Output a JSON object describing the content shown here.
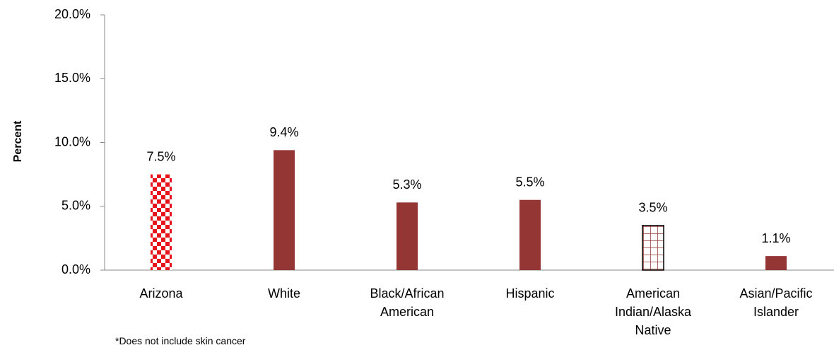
{
  "chart_data": {
    "type": "bar",
    "y_axis_label": "Percent",
    "categories": [
      "Arizona",
      "White",
      "Black/African American",
      "Hispanic",
      "American Indian/Alaska Native",
      "Asian/Pacific Islander"
    ],
    "values": [
      7.5,
      9.4,
      5.3,
      5.5,
      3.5,
      1.1
    ],
    "value_labels": [
      "7.5%",
      "9.4%",
      "5.3%",
      "5.5%",
      "3.5%",
      "1.1%"
    ],
    "colors": [
      "#e8141b",
      "#943634",
      "#943634",
      "#943634",
      "#943634",
      "#943634"
    ],
    "patterns": [
      "checkerboard",
      "solid",
      "solid",
      "solid",
      "grid",
      "solid"
    ],
    "ylim": [
      0,
      20
    ],
    "yticks": [
      {
        "value": 0,
        "label": "0.0%"
      },
      {
        "value": 5,
        "label": "5.0%"
      },
      {
        "value": 10,
        "label": "10.0%"
      },
      {
        "value": 15,
        "label": "15.0%"
      },
      {
        "value": 20,
        "label": "20.0%"
      }
    ],
    "footnote": "*Does not include skin cancer"
  }
}
